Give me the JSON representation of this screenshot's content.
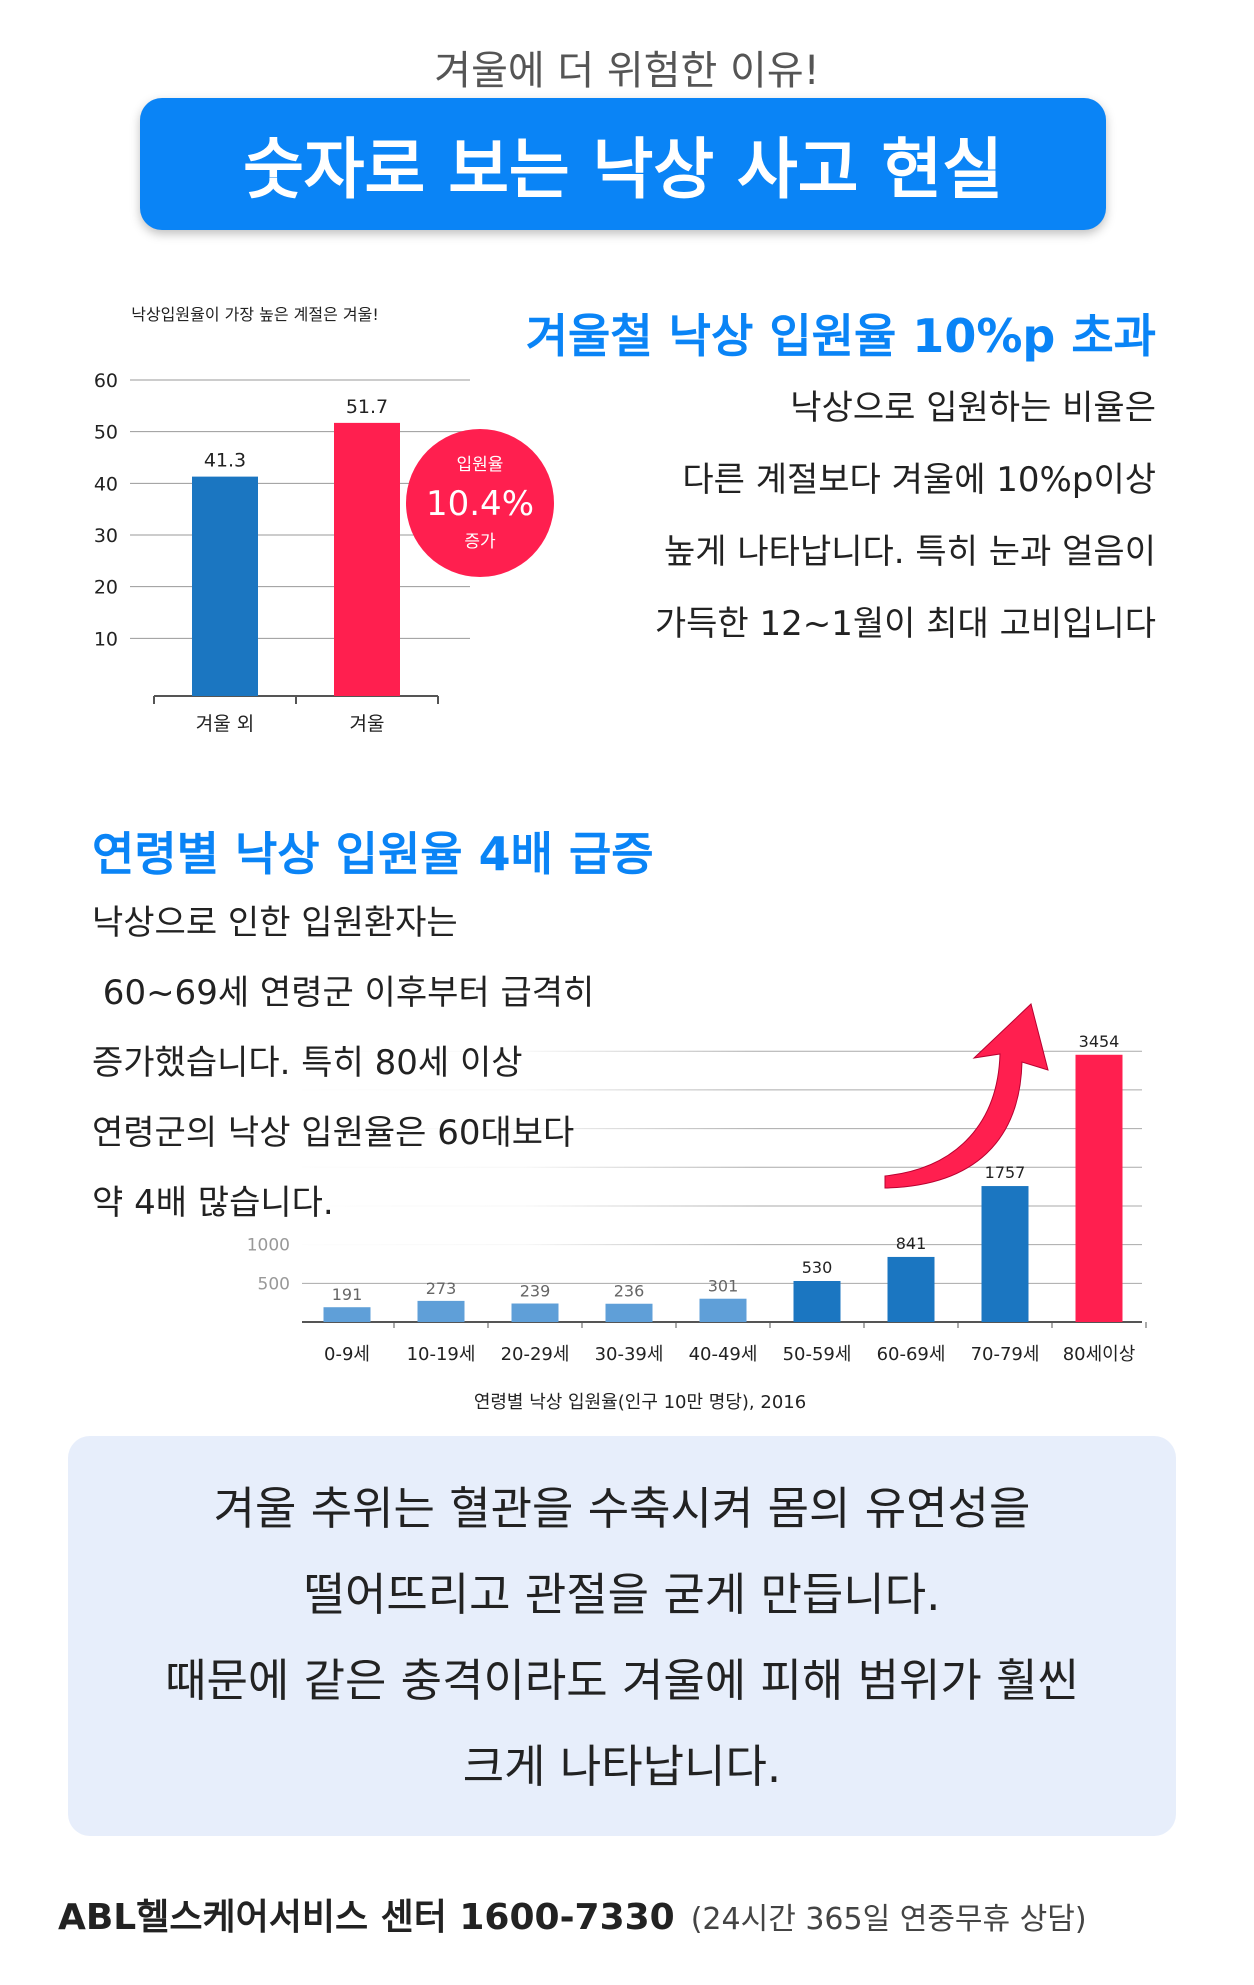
{
  "header": {
    "subtitle": "겨울에 더 위험한 이유!",
    "banner_title": "숫자로 보는 낙상 사고 현실"
  },
  "section1": {
    "heading": "겨울철 낙상 입원율 10%p 초과",
    "body_lines": [
      "낙상으로 입원하는 비율은",
      "다른 계절보다 겨울에 10%p이상",
      "높게 나타납니다. 특히 눈과 얼음이",
      "가득한 12~1월이 최대 고비입니다"
    ]
  },
  "section2": {
    "heading": "연령별 낙상 입원율 4배 급증",
    "body_lines": [
      "낙상으로 인한 입원환자는",
      " 60~69세 연령군 이후부터 급격히",
      "증가했습니다. 특히 80세 이상",
      "연령군의 낙상 입원율은 60대보다",
      "약 4배 많습니다."
    ]
  },
  "notice": {
    "lines": [
      "겨울 추위는 혈관을 수축시켜 몸의 유연성을",
      "떨어뜨리고 관절을 굳게 만듭니다.",
      "때문에 같은 충격이라도 겨울에 피해 범위가 훨씬",
      "크게 나타납니다."
    ]
  },
  "footer": {
    "center": "ABL헬스케어서비스 센터 1600-7330",
    "note": "(24시간 365일 연중무휴 상담)"
  },
  "colors": {
    "accent_blue": "#0a84f6",
    "bar_blue": "#1b76c1",
    "bar_light_blue": "#5f9fd8",
    "highlight_red": "#ff1f4f"
  },
  "chart_data": [
    {
      "type": "bar",
      "title": "낙상입원율이 가장 높은 계절은 겨울!",
      "categories": [
        "겨울 외",
        "겨울"
      ],
      "values": [
        41.3,
        51.7
      ],
      "yticks": [
        10,
        20,
        30,
        40,
        50,
        60
      ],
      "ylim": [
        0,
        60
      ],
      "grid": true,
      "annotation": {
        "line1": "입원율",
        "value": "10.4%",
        "line3": "증가"
      }
    },
    {
      "type": "bar",
      "title": "연령별 낙상 입원율(인구 10만 명당), 2016",
      "categories": [
        "0-9세",
        "10-19세",
        "20-29세",
        "30-39세",
        "40-49세",
        "50-59세",
        "60-69세",
        "70-79세",
        "80세이상"
      ],
      "values": [
        191,
        273,
        239,
        236,
        301,
        530,
        841,
        1757,
        3454
      ],
      "yticks": [
        500,
        1000
      ],
      "ylim": [
        0,
        3800
      ],
      "grid": true
    }
  ]
}
